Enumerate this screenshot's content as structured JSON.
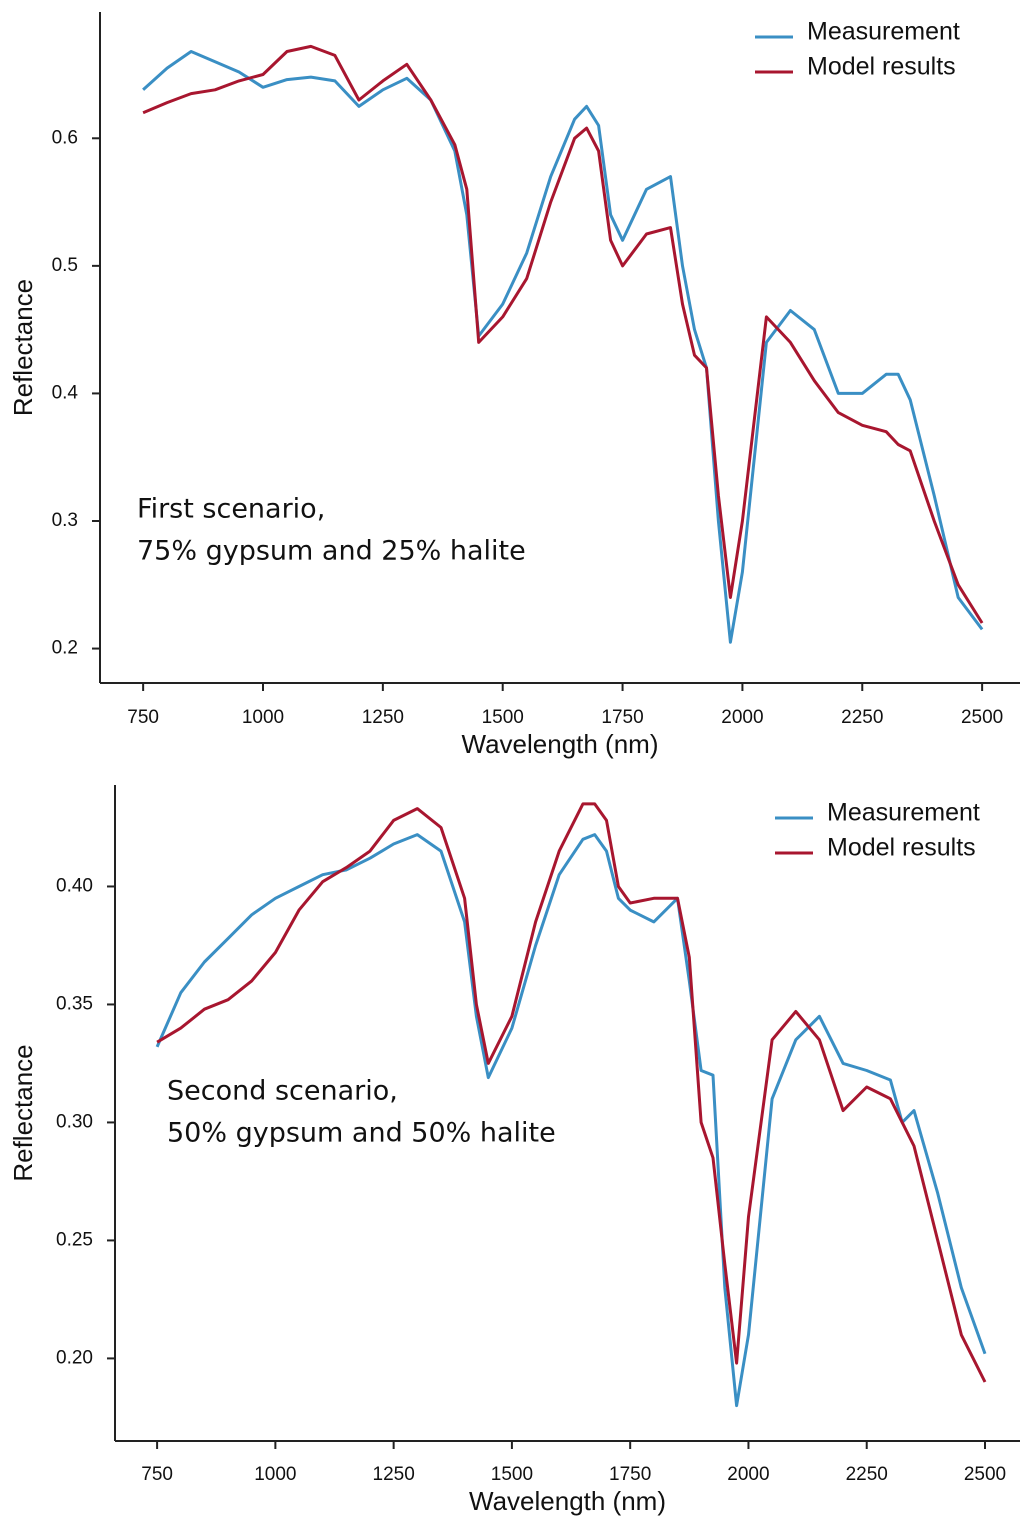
{
  "chart_data": [
    {
      "type": "line",
      "x_label": "Wavelength (nm)",
      "y_label": "Reflectance",
      "annotation": [
        "First scenario,",
        "75% gypsum and 25% halite"
      ],
      "legend": "upper right",
      "xlim": [
        660,
        2579
      ],
      "ylim": [
        0.173,
        0.699
      ],
      "xticks": [
        750,
        1000,
        1250,
        1500,
        1750,
        2000,
        2250,
        2500
      ],
      "yticks": [
        0.2,
        0.3,
        0.4,
        0.5,
        0.6
      ],
      "x": [
        750,
        800,
        850,
        900,
        950,
        1000,
        1050,
        1100,
        1150,
        1200,
        1250,
        1300,
        1350,
        1400,
        1425,
        1450,
        1500,
        1550,
        1600,
        1650,
        1675,
        1700,
        1725,
        1750,
        1800,
        1850,
        1875,
        1900,
        1925,
        1950,
        1975,
        2000,
        2050,
        2100,
        2150,
        2200,
        2250,
        2300,
        2325,
        2350,
        2400,
        2450,
        2500
      ],
      "series": [
        {
          "name": "Measurement",
          "color": "#3a8fc4",
          "values": [
            0.638,
            0.655,
            0.668,
            0.66,
            0.652,
            0.64,
            0.646,
            0.648,
            0.645,
            0.625,
            0.638,
            0.647,
            0.63,
            0.59,
            0.54,
            0.445,
            0.47,
            0.51,
            0.57,
            0.615,
            0.625,
            0.61,
            0.54,
            0.52,
            0.56,
            0.57,
            0.5,
            0.45,
            0.42,
            0.3,
            0.205,
            0.26,
            0.44,
            0.465,
            0.45,
            0.4,
            0.4,
            0.415,
            0.415,
            0.395,
            0.32,
            0.24,
            0.215
          ]
        },
        {
          "name": "Model results",
          "color": "#a8162f",
          "values": [
            0.62,
            0.628,
            0.635,
            0.638,
            0.645,
            0.65,
            0.668,
            0.672,
            0.665,
            0.63,
            0.645,
            0.658,
            0.63,
            0.595,
            0.56,
            0.44,
            0.46,
            0.49,
            0.55,
            0.6,
            0.608,
            0.59,
            0.52,
            0.5,
            0.525,
            0.53,
            0.47,
            0.43,
            0.42,
            0.32,
            0.24,
            0.3,
            0.46,
            0.44,
            0.41,
            0.385,
            0.375,
            0.37,
            0.36,
            0.355,
            0.3,
            0.25,
            0.22
          ]
        }
      ]
    },
    {
      "type": "line",
      "x_label": "Wavelength (nm)",
      "y_label": "Reflectance",
      "annotation": [
        "Second scenario,",
        "50% gypsum and 50% halite"
      ],
      "legend": "upper right",
      "xlim": [
        661,
        2574
      ],
      "ylim": [
        0.165,
        0.443
      ],
      "xticks": [
        750,
        1000,
        1250,
        1500,
        1750,
        2000,
        2250,
        2500
      ],
      "yticks": [
        {
          "value": 0.2,
          "label": "0.20"
        },
        0.25,
        {
          "value": 0.3,
          "label": "0.30"
        },
        0.35,
        {
          "value": 0.4,
          "label": "0.40"
        }
      ],
      "x": [
        750,
        800,
        850,
        900,
        950,
        1000,
        1050,
        1100,
        1150,
        1200,
        1250,
        1300,
        1350,
        1400,
        1425,
        1450,
        1500,
        1550,
        1600,
        1650,
        1675,
        1700,
        1725,
        1750,
        1800,
        1850,
        1875,
        1900,
        1925,
        1950,
        1975,
        2000,
        2050,
        2100,
        2150,
        2200,
        2250,
        2300,
        2325,
        2350,
        2400,
        2450,
        2500
      ],
      "series": [
        {
          "name": "Measurement",
          "color": "#3a8fc4",
          "values": [
            0.332,
            0.355,
            0.368,
            0.378,
            0.388,
            0.395,
            0.4,
            0.405,
            0.407,
            0.412,
            0.418,
            0.422,
            0.415,
            0.385,
            0.345,
            0.319,
            0.34,
            0.375,
            0.405,
            0.42,
            0.422,
            0.415,
            0.395,
            0.39,
            0.385,
            0.395,
            0.36,
            0.322,
            0.32,
            0.23,
            0.18,
            0.21,
            0.31,
            0.335,
            0.345,
            0.325,
            0.322,
            0.318,
            0.3,
            0.305,
            0.27,
            0.23,
            0.202
          ]
        },
        {
          "name": "Model results",
          "color": "#a8162f",
          "values": [
            0.334,
            0.34,
            0.348,
            0.352,
            0.36,
            0.372,
            0.39,
            0.402,
            0.408,
            0.415,
            0.428,
            0.433,
            0.425,
            0.395,
            0.35,
            0.325,
            0.345,
            0.385,
            0.415,
            0.435,
            0.435,
            0.428,
            0.4,
            0.393,
            0.395,
            0.395,
            0.37,
            0.3,
            0.285,
            0.24,
            0.198,
            0.26,
            0.335,
            0.347,
            0.335,
            0.305,
            0.315,
            0.31,
            0.3,
            0.29,
            0.25,
            0.21,
            0.19
          ]
        }
      ]
    }
  ]
}
